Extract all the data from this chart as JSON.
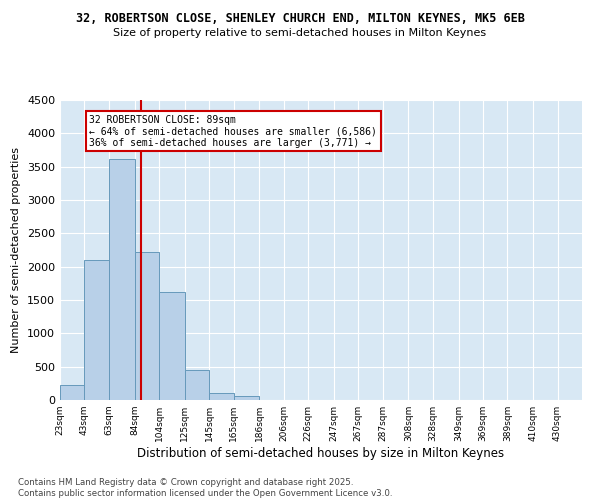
{
  "title_line1": "32, ROBERTSON CLOSE, SHENLEY CHURCH END, MILTON KEYNES, MK5 6EB",
  "title_line2": "Size of property relative to semi-detached houses in Milton Keynes",
  "xlabel": "Distribution of semi-detached houses by size in Milton Keynes",
  "ylabel": "Number of semi-detached properties",
  "footnote": "Contains HM Land Registry data © Crown copyright and database right 2025.\nContains public sector information licensed under the Open Government Licence v3.0.",
  "annotation_title": "32 ROBERTSON CLOSE: 89sqm",
  "annotation_line2": "← 64% of semi-detached houses are smaller (6,586)",
  "annotation_line3": "36% of semi-detached houses are larger (3,771) →",
  "property_size": 89,
  "bin_starts": [
    23,
    43,
    63,
    84,
    104,
    125,
    145,
    165,
    186,
    206,
    226,
    247,
    267,
    287,
    308,
    328,
    349,
    369,
    389,
    410
  ],
  "bin_widths": [
    20,
    20,
    21,
    20,
    21,
    20,
    20,
    21,
    20,
    20,
    21,
    20,
    20,
    21,
    20,
    21,
    20,
    20,
    21,
    20
  ],
  "bin_labels": [
    "23sqm",
    "43sqm",
    "63sqm",
    "84sqm",
    "104sqm",
    "125sqm",
    "145sqm",
    "165sqm",
    "186sqm",
    "206sqm",
    "226sqm",
    "247sqm",
    "267sqm",
    "287sqm",
    "308sqm",
    "328sqm",
    "349sqm",
    "369sqm",
    "389sqm",
    "410sqm",
    "430sqm"
  ],
  "counts": [
    230,
    2100,
    3620,
    2220,
    1620,
    450,
    100,
    55,
    0,
    0,
    0,
    0,
    0,
    0,
    0,
    0,
    0,
    0,
    0,
    0
  ],
  "bar_color": "#b8d0e8",
  "bar_edge_color": "#6699bb",
  "vline_color": "#cc0000",
  "annotation_box_color": "#cc0000",
  "background_color": "#d8e8f4",
  "ylim": [
    0,
    4500
  ],
  "yticks": [
    0,
    500,
    1000,
    1500,
    2000,
    2500,
    3000,
    3500,
    4000,
    4500
  ],
  "xlim_left": 23,
  "xlim_right": 450
}
